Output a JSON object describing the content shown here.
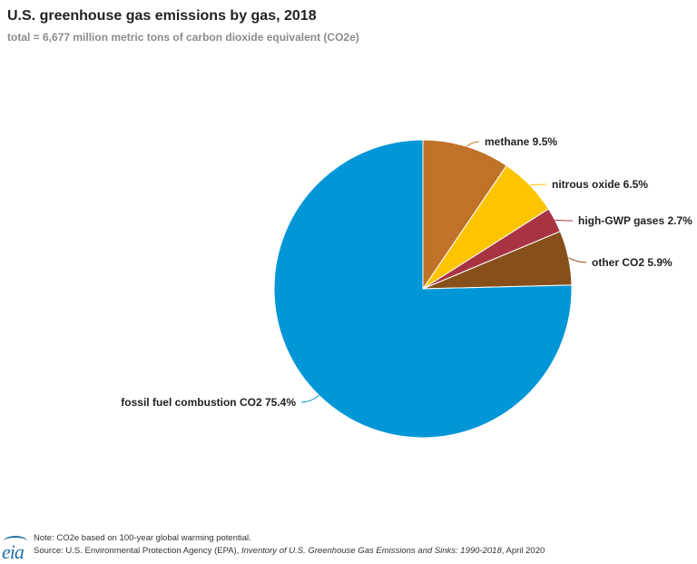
{
  "chart_data": {
    "type": "pie",
    "title": "U.S. greenhouse gas emissions by gas, 2018",
    "subtitle": "total = 6,677 million metric tons of carbon dioxide equivalent (CO2e)",
    "slices": [
      {
        "label": "methane 9.5%",
        "value": 9.5,
        "color": "#bf7228"
      },
      {
        "label": "nitrous oxide 6.5%",
        "value": 6.5,
        "color": "#fec400"
      },
      {
        "label": "high-GWP gases 2.7%",
        "value": 2.7,
        "color": "#a83343"
      },
      {
        "label": "other CO2 5.9%",
        "value": 5.9,
        "color": "#87501a"
      },
      {
        "label": "fossil fuel combustion CO2 75.4%",
        "value": 75.4,
        "color": "#0096d7"
      }
    ],
    "start_angle": "12 o'clock",
    "direction": "clockwise"
  },
  "footer": {
    "logo_text": "eia",
    "note": "Note: CO2e based on 100-year global warming potential.",
    "source_prefix": "Source: U.S. Environmental Protection Agency (EPA), ",
    "source_title": "Inventory of U.S. Greenhouse Gas Emissions and Sinks: 1990-2018",
    "source_suffix": ", April 2020"
  }
}
